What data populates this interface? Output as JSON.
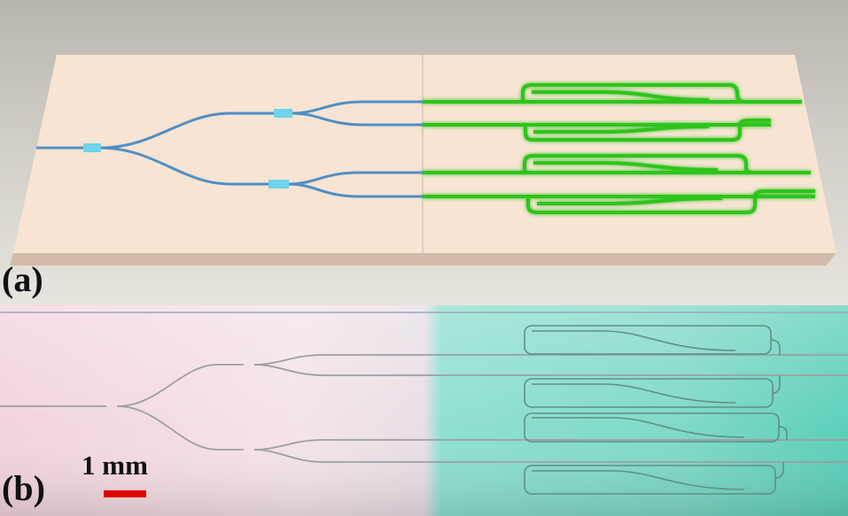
{
  "panels": {
    "a": {
      "label": "(a)"
    },
    "b": {
      "label": "(b)"
    }
  },
  "scale_bar": {
    "text": "1 mm",
    "color": "#e00000"
  },
  "colors": {
    "substrate": "#f7e4d3",
    "waveguide_left": "#4f8fc4",
    "coupler": "#6fd3ec",
    "waveguide_right": "#33cc22",
    "photo_left": "#f3d6df",
    "photo_right": "#6fd8c6"
  }
}
